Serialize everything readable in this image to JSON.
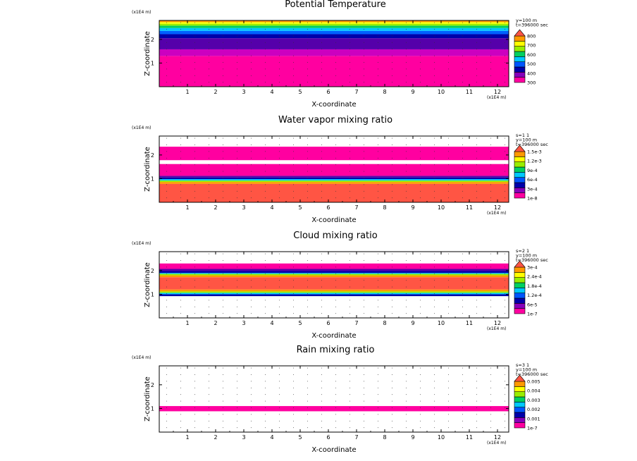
{
  "chart_data": [
    {
      "type": "heatmap",
      "title": "Potential Temperature",
      "xlabel": "X-coordinate",
      "ylabel": "Z-coordinate",
      "x_unit": "(x1E4 m)",
      "y_unit": "(x1E4 m)",
      "xlim": [
        0,
        12.4
      ],
      "ylim": [
        0,
        2.8
      ],
      "x_ticks": [
        "1",
        "2",
        "3",
        "4",
        "5",
        "6",
        "7",
        "8",
        "9",
        "10",
        "11",
        "12"
      ],
      "y_ticks": [
        "1",
        "2"
      ],
      "info": [
        "y=100 m",
        "t=396000 sec"
      ],
      "colorbar": {
        "labels": [
          "300",
          "400",
          "500",
          "600",
          "700",
          "800"
        ],
        "colors": [
          "#ff00a0",
          "#8800bb",
          "#0000aa",
          "#0055ff",
          "#00c8ff",
          "#00d060",
          "#99ee00",
          "#ffff00",
          "#ff9900",
          "#ff5544"
        ]
      },
      "bands": [
        {
          "z0": 0.0,
          "z1": 1.3,
          "color": "#ff00a0"
        },
        {
          "z0": 1.3,
          "z1": 1.58,
          "color": "#cc00c0"
        },
        {
          "z0": 1.58,
          "z1": 2.05,
          "color": "#5500aa"
        },
        {
          "z0": 2.05,
          "z1": 2.22,
          "color": "#0000aa"
        },
        {
          "z0": 2.22,
          "z1": 2.36,
          "color": "#0060ff"
        },
        {
          "z0": 2.36,
          "z1": 2.48,
          "color": "#00c8ff"
        },
        {
          "z0": 2.48,
          "z1": 2.58,
          "color": "#00d060"
        },
        {
          "z0": 2.58,
          "z1": 2.66,
          "color": "#99ee00"
        },
        {
          "z0": 2.66,
          "z1": 2.73,
          "color": "#ffff00"
        },
        {
          "z0": 2.73,
          "z1": 2.8,
          "color": "#ff9900"
        }
      ]
    },
    {
      "type": "heatmap",
      "title": "Water vapor mixing ratio",
      "xlabel": "X-coordinate",
      "ylabel": "Z-coordinate",
      "x_unit": "(x1E4 m)",
      "y_unit": "(x1E4 m)",
      "xlim": [
        0,
        12.4
      ],
      "ylim": [
        0,
        2.8
      ],
      "x_ticks": [
        "1",
        "2",
        "3",
        "4",
        "5",
        "6",
        "7",
        "8",
        "9",
        "10",
        "11",
        "12"
      ],
      "y_ticks": [
        "1",
        "2"
      ],
      "info": [
        "s=1 1",
        "y=100 m",
        "t=396000 sec"
      ],
      "colorbar": {
        "labels": [
          "1e-8",
          "3e-4",
          "6e-4",
          "9e-4",
          "1.2e-3",
          "1.5e-3"
        ],
        "colors": [
          "#ff00a0",
          "#8800bb",
          "#0000aa",
          "#0055ff",
          "#00c8ff",
          "#00d060",
          "#99ee00",
          "#ffff00",
          "#ff9900",
          "#ff5544"
        ]
      },
      "bands": [
        {
          "z0": 0.0,
          "z1": 0.78,
          "color": "#ff5544"
        },
        {
          "z0": 0.78,
          "z1": 0.86,
          "color": "#ff9900"
        },
        {
          "z0": 0.86,
          "z1": 0.92,
          "color": "#99ee00"
        },
        {
          "z0": 0.92,
          "z1": 0.98,
          "color": "#00c8ff"
        },
        {
          "z0": 0.98,
          "z1": 1.05,
          "color": "#0000aa"
        },
        {
          "z0": 1.05,
          "z1": 1.12,
          "color": "#5500aa"
        },
        {
          "z0": 1.12,
          "z1": 1.62,
          "color": "#ff00a0"
        },
        {
          "z0": 1.62,
          "z1": 1.78,
          "color": "#ffffff"
        },
        {
          "z0": 1.78,
          "z1": 2.35,
          "color": "#ff00a0"
        }
      ]
    },
    {
      "type": "heatmap",
      "title": "Cloud mixing ratio",
      "xlabel": "X-coordinate",
      "ylabel": "Z-coordinate",
      "x_unit": "(x1E4 m)",
      "y_unit": "(x1E4 m)",
      "xlim": [
        0,
        12.4
      ],
      "ylim": [
        0,
        2.8
      ],
      "x_ticks": [
        "1",
        "2",
        "3",
        "4",
        "5",
        "6",
        "7",
        "8",
        "9",
        "10",
        "11",
        "12"
      ],
      "y_ticks": [
        "1",
        "2"
      ],
      "info": [
        "s=2 1",
        "y=100 m",
        "t=396000 sec"
      ],
      "colorbar": {
        "labels": [
          "1e-7",
          "6e-5",
          "1.2e-4",
          "1.8e-4",
          "2.4e-4",
          "3e-4"
        ],
        "colors": [
          "#ff00a0",
          "#8800bb",
          "#0000aa",
          "#0055ff",
          "#00c8ff",
          "#00d060",
          "#99ee00",
          "#ffff00",
          "#ff9900",
          "#ff5544"
        ]
      },
      "bands": [
        {
          "z0": 0.92,
          "z1": 1.0,
          "color": "#0000aa"
        },
        {
          "z0": 1.0,
          "z1": 1.06,
          "color": "#00c8ff"
        },
        {
          "z0": 1.06,
          "z1": 1.12,
          "color": "#99ee00"
        },
        {
          "z0": 1.12,
          "z1": 1.2,
          "color": "#ff9900"
        },
        {
          "z0": 1.2,
          "z1": 1.72,
          "color": "#ff5544"
        },
        {
          "z0": 1.72,
          "z1": 1.8,
          "color": "#ff9900"
        },
        {
          "z0": 1.8,
          "z1": 1.86,
          "color": "#99ee00"
        },
        {
          "z0": 1.86,
          "z1": 1.9,
          "color": "#00c8ff"
        },
        {
          "z0": 1.9,
          "z1": 1.98,
          "color": "#0000aa"
        },
        {
          "z0": 1.98,
          "z1": 2.07,
          "color": "#5500aa"
        },
        {
          "z0": 2.07,
          "z1": 2.3,
          "color": "#ff00a0"
        }
      ]
    },
    {
      "type": "heatmap",
      "title": "Rain mixing ratio",
      "xlabel": "X-coordinate",
      "ylabel": "Z-coordinate",
      "x_unit": "(x1E4 m)",
      "y_unit": "(x1E4 m)",
      "xlim": [
        0,
        12.4
      ],
      "ylim": [
        0,
        2.8
      ],
      "x_ticks": [
        "1",
        "2",
        "3",
        "4",
        "5",
        "6",
        "7",
        "8",
        "9",
        "10",
        "11",
        "12"
      ],
      "y_ticks": [
        "1",
        "2"
      ],
      "info": [
        "s=3 1",
        "y=100 m",
        "t=396000 sec"
      ],
      "colorbar": {
        "labels": [
          "1e-7",
          "0.001",
          "0.002",
          "0.003",
          "0.004",
          "0.005"
        ],
        "colors": [
          "#ff00a0",
          "#8800bb",
          "#0000aa",
          "#0055ff",
          "#00c8ff",
          "#00d060",
          "#99ee00",
          "#ffff00",
          "#ff9900",
          "#ff5544"
        ]
      },
      "bands": [
        {
          "z0": 0.88,
          "z1": 1.1,
          "color": "#ff00a0"
        }
      ]
    }
  ]
}
